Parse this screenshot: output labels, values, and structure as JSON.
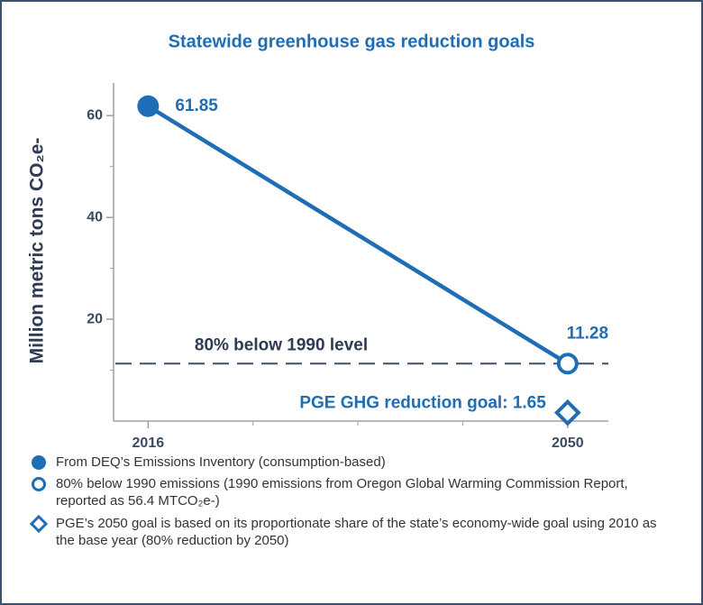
{
  "chart_data": {
    "type": "line",
    "title": "Statewide greenhouse gas reduction goals",
    "y_label": "Million metric tons CO₂e-",
    "xlim": [
      2013.2,
      2053.3
    ],
    "xticks": [
      2016,
      2050
    ],
    "xminorticks": [
      2024.5,
      2033,
      2041.5
    ],
    "ylim": [
      0,
      65
    ],
    "yticks": [
      20,
      40,
      60
    ],
    "yminorticks": [
      10,
      30,
      50
    ],
    "color": "#1f6db5",
    "series": [
      {
        "type": "line",
        "x": [
          2016,
          2050
        ],
        "values": [
          61.85,
          11.28
        ],
        "value_labels": [
          "61.85",
          "11.28"
        ],
        "markers": [
          "filled-circle",
          "open-circle"
        ],
        "legend": [
          "From DEQ’s Emissions Inventory (consumption-based)",
          "80% below 1990 emissions (1990 emissions from Oregon Global Warming Commission Report, reported as 56.4 MTCO₂e-)"
        ]
      },
      {
        "type": "scatter",
        "x": [
          2050
        ],
        "values": [
          1.65
        ],
        "value_labels": [
          "PGE GHG reduction goal: 1.65"
        ],
        "markers": [
          "open-diamond"
        ],
        "legend": [
          "PGE’s 2050 goal is based on its proportionate share of the state’s economy-wide goal using 2010 as the base year (80% reduction by 2050)"
        ]
      }
    ],
    "reference_line": {
      "value": 11.28,
      "label": "80% below 1990 level",
      "color": "#3d4f6e"
    }
  }
}
